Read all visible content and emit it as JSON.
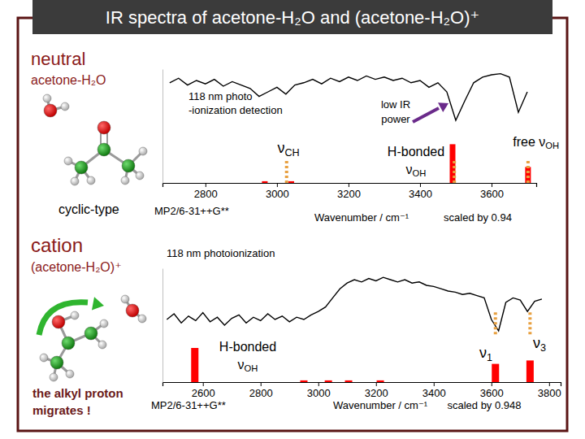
{
  "title": "IR spectra of acetone-H₂O and (acetone-H₂O)⁺",
  "chart_data": [
    {
      "type": "line",
      "panel_label": "neutral",
      "species": "acetone-H₂O",
      "structure_label": [
        "cyclic-type"
      ],
      "detection": [
        "118 nm photo",
        "-ionization detection"
      ],
      "note": [
        "low IR",
        "power"
      ],
      "peak_labels": [
        [
          "νCH"
        ],
        [
          "H-bonded",
          "νOH"
        ],
        [
          "free νOH"
        ]
      ],
      "method": "MP2/6-31++G**",
      "x_label": "Wavenumber / cm⁻¹",
      "scale_note": "scaled by 0.94",
      "xlim": [
        2680,
        3725
      ],
      "xticks": [
        2800,
        3000,
        3200,
        3400,
        3600
      ],
      "ylim": [
        0,
        1
      ],
      "tick_labels": "x",
      "series": [
        {
          "type": "line",
          "color": "#000000",
          "x": [
            2700,
            2725,
            2750,
            2775,
            2800,
            2825,
            2850,
            2875,
            2900,
            2925,
            2950,
            2975,
            3000,
            3025,
            3050,
            3075,
            3100,
            3125,
            3150,
            3175,
            3200,
            3225,
            3250,
            3275,
            3300,
            3325,
            3350,
            3375,
            3400,
            3425,
            3450,
            3475,
            3500,
            3525,
            3550,
            3575,
            3600,
            3625,
            3650,
            3675,
            3700
          ],
          "values": [
            0.88,
            0.92,
            0.86,
            0.9,
            0.87,
            0.91,
            0.85,
            0.89,
            0.86,
            0.83,
            0.76,
            0.8,
            0.84,
            0.78,
            0.86,
            0.88,
            0.91,
            0.87,
            0.92,
            0.89,
            0.93,
            0.9,
            0.94,
            0.91,
            0.93,
            0.9,
            0.92,
            0.88,
            0.9,
            0.84,
            0.88,
            0.8,
            0.55,
            0.72,
            0.88,
            0.93,
            0.95,
            0.96,
            0.93,
            0.62,
            0.8
          ]
        },
        {
          "type": "bar",
          "color": "#ff0000",
          "x": [
            2966,
            3040,
            3491,
            3702
          ],
          "values": [
            0.015,
            0.015,
            0.34,
            0.14
          ]
        },
        {
          "type": "rule",
          "color": "#e8a040",
          "line_style": "dotted",
          "x": [
            3027,
            3496,
            3702
          ]
        }
      ]
    },
    {
      "type": "line",
      "panel_label": "cation",
      "species": "(acetone-H₂O)⁺",
      "structure_label": [
        "the alkyl proton",
        "migrates !"
      ],
      "detection": [
        "118 nm photoionization"
      ],
      "peak_labels": [
        [
          "H-bonded",
          "νOH"
        ],
        [
          "ν1"
        ],
        [
          "ν3"
        ]
      ],
      "method": "MP2/6-31++G**",
      "x_label": "Wavenumber / cm⁻¹",
      "scale_note": "scaled by 0.948",
      "xlim": [
        2460,
        3840
      ],
      "xticks": [
        2600,
        2800,
        3000,
        3200,
        3400,
        3600,
        3800
      ],
      "ylim": [
        0,
        1
      ],
      "tick_labels": "x",
      "series": [
        {
          "type": "line",
          "color": "#000000",
          "x": [
            2475,
            2500,
            2525,
            2550,
            2575,
            2600,
            2625,
            2650,
            2675,
            2700,
            2725,
            2750,
            2775,
            2800,
            2825,
            2850,
            2875,
            2900,
            2925,
            2950,
            2975,
            3000,
            3025,
            3050,
            3075,
            3100,
            3125,
            3150,
            3175,
            3200,
            3225,
            3250,
            3275,
            3300,
            3325,
            3350,
            3375,
            3400,
            3425,
            3450,
            3475,
            3500,
            3525,
            3550,
            3575,
            3600,
            3625,
            3650,
            3675,
            3700,
            3725,
            3750,
            3775
          ],
          "values": [
            0.55,
            0.6,
            0.52,
            0.58,
            0.54,
            0.61,
            0.53,
            0.57,
            0.5,
            0.56,
            0.59,
            0.52,
            0.57,
            0.54,
            0.6,
            0.55,
            0.58,
            0.53,
            0.57,
            0.55,
            0.59,
            0.62,
            0.66,
            0.74,
            0.82,
            0.87,
            0.9,
            0.88,
            0.91,
            0.89,
            0.92,
            0.9,
            0.88,
            0.9,
            0.87,
            0.88,
            0.85,
            0.84,
            0.82,
            0.8,
            0.79,
            0.77,
            0.78,
            0.76,
            0.74,
            0.55,
            0.45,
            0.7,
            0.74,
            0.72,
            0.62,
            0.71,
            0.73
          ]
        },
        {
          "type": "bar",
          "color": "#ff0000",
          "x": [
            2572,
            2950,
            3035,
            3105,
            3215,
            3614,
            3734
          ],
          "values": [
            0.3,
            0.015,
            0.015,
            0.015,
            0.015,
            0.16,
            0.19
          ]
        },
        {
          "type": "rule",
          "color": "#e8a040",
          "line_style": "dotted",
          "x": [
            3614,
            3734
          ]
        }
      ]
    }
  ]
}
